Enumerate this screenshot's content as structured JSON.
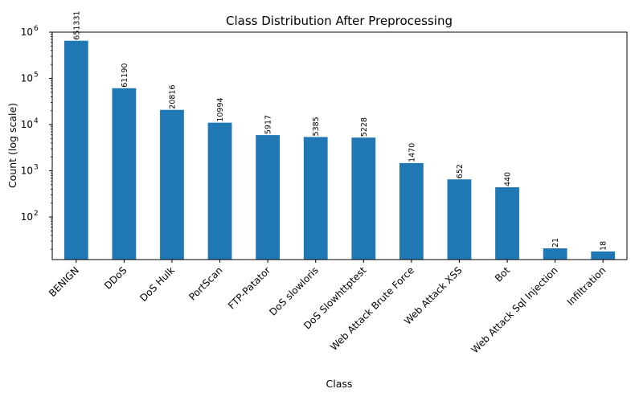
{
  "chart_data": {
    "type": "bar",
    "title": "Class Distribution After Preprocessing",
    "xlabel": "Class",
    "ylabel": "Count (log scale)",
    "yscale": "log",
    "ylim": [
      12,
      1000000
    ],
    "y_ticks": [
      {
        "value": 100,
        "base": "10",
        "exp": "2"
      },
      {
        "value": 1000,
        "base": "10",
        "exp": "3"
      },
      {
        "value": 10000,
        "base": "10",
        "exp": "4"
      },
      {
        "value": 100000,
        "base": "10",
        "exp": "5"
      },
      {
        "value": 1000000,
        "base": "10",
        "exp": "6"
      }
    ],
    "grid": false,
    "bar_color": "#1f77b4",
    "categories": [
      "BENIGN",
      "DDoS",
      "DoS Hulk",
      "PortScan",
      "FTP-Patator",
      "DoS slowloris",
      "DoS Slowhttptest",
      "Web Attack  Brute Force",
      "Web Attack  XSS",
      "Bot",
      "Web Attack  Sql Injection",
      "Infiltration"
    ],
    "values": [
      651331,
      61190,
      20816,
      10994,
      5917,
      5385,
      5228,
      1470,
      652,
      440,
      21,
      18
    ],
    "value_labels": [
      "651331",
      "61190",
      "20816",
      "10994",
      "5917",
      "5385",
      "5228",
      "1470",
      "652",
      "440",
      "21",
      "18"
    ]
  }
}
